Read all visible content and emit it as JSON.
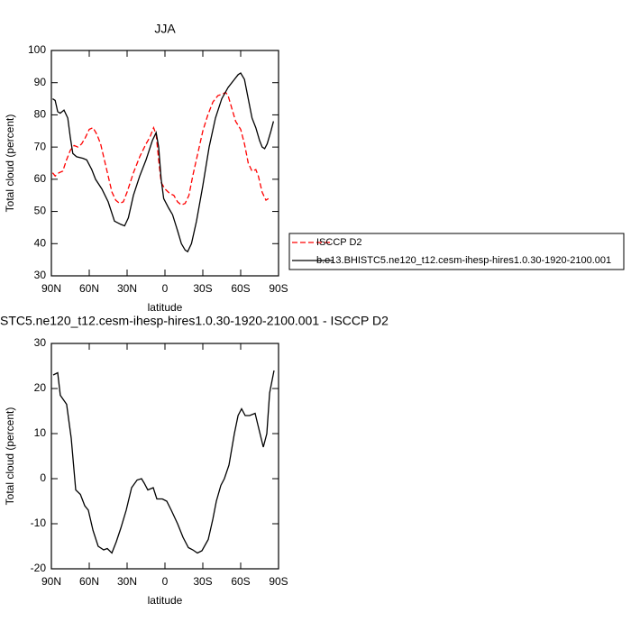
{
  "chart_data": [
    {
      "type": "line",
      "title": "JJA",
      "xlabel": "latitude",
      "ylabel": "Total cloud (percent)",
      "xlim": [
        90,
        -90
      ],
      "ylim": [
        30,
        100
      ],
      "xticks": [
        {
          "value": 90,
          "label": "90N"
        },
        {
          "value": 60,
          "label": "60N"
        },
        {
          "value": 30,
          "label": "30N"
        },
        0,
        {
          "value": -30,
          "label": "30S"
        },
        {
          "value": -60,
          "label": "60S"
        },
        {
          "value": -90,
          "label": "90S"
        }
      ],
      "yticks": [
        30,
        40,
        50,
        60,
        70,
        80,
        90,
        100
      ],
      "legend": "outside-right",
      "series": [
        {
          "name": "ISCCP D2",
          "color": "#ff0000",
          "dash": true,
          "x": [
            89,
            87,
            84,
            81,
            78,
            75,
            72,
            69,
            66,
            63,
            60,
            57,
            54,
            51,
            48,
            45,
            42,
            39,
            36,
            33,
            30,
            25,
            20,
            15,
            12,
            9,
            7,
            5,
            3,
            0,
            -4,
            -7,
            -10,
            -13,
            -16,
            -19,
            -22,
            -26,
            -30,
            -34,
            -38,
            -42,
            -46,
            -48,
            -50,
            -53,
            -56,
            -60,
            -63,
            -66,
            -69,
            -72,
            -74,
            -77,
            -80,
            -82
          ],
          "values": [
            62,
            61,
            62,
            62.5,
            66,
            69,
            70.5,
            70,
            71,
            73,
            75.5,
            76,
            74,
            71,
            66,
            61,
            56,
            53.5,
            52.5,
            53,
            56,
            62,
            67,
            71,
            73,
            76,
            74,
            66,
            59,
            57,
            55.5,
            55,
            53,
            52,
            52.5,
            55,
            61,
            68,
            75,
            80,
            84,
            86,
            86.5,
            87,
            86,
            82,
            78,
            75.5,
            71,
            65,
            62.5,
            63,
            61,
            56,
            53.5,
            54
          ]
        },
        {
          "name": "b.e13.BHISTC5.ne120_t12.cesm-ihesp-hires1.0.30-1920-2100.001",
          "color": "#000000",
          "dash": false,
          "x": [
            89,
            87,
            85,
            83,
            80,
            77,
            75,
            73,
            70,
            65,
            62,
            58,
            55,
            50,
            45,
            40,
            35,
            32,
            29,
            25,
            20,
            15,
            10,
            7,
            5,
            3,
            1,
            -3,
            -6,
            -10,
            -13,
            -16,
            -18,
            -21,
            -25,
            -30,
            -35,
            -40,
            -45,
            -50,
            -55,
            -58,
            -60,
            -63,
            -66,
            -69,
            -72,
            -75,
            -77,
            -79,
            -81,
            -84,
            -86
          ],
          "values": [
            85,
            84.5,
            81,
            80.5,
            81.5,
            79,
            73,
            68,
            67,
            66.5,
            66,
            63,
            60,
            57,
            53,
            47,
            46,
            45.5,
            48,
            55,
            61,
            66,
            72,
            74.5,
            70,
            60,
            54,
            51,
            49,
            44,
            40,
            38,
            37.5,
            40,
            47,
            58,
            70,
            79,
            85,
            88.5,
            91,
            92.5,
            93,
            91,
            85,
            79,
            76,
            72,
            70,
            69.5,
            71,
            75,
            78
          ]
        }
      ]
    },
    {
      "type": "line",
      "title": "STC5.ne120_t12.cesm-ihesp-hires1.0.30-1920-2100.001 - ISCCP D2",
      "xlabel": "latitude",
      "ylabel": "Total cloud (percent)",
      "xlim": [
        90,
        -90
      ],
      "ylim": [
        -20,
        30
      ],
      "xticks": [
        {
          "value": 90,
          "label": "90N"
        },
        {
          "value": 60,
          "label": "60N"
        },
        {
          "value": 30,
          "label": "30N"
        },
        0,
        {
          "value": -30,
          "label": "30S"
        },
        {
          "value": -60,
          "label": "60S"
        },
        {
          "value": -90,
          "label": "90S"
        }
      ],
      "yticks": [
        -20,
        -10,
        0,
        10,
        20,
        30
      ],
      "series": [
        {
          "color": "#000000",
          "dash": false,
          "x": [
            88.6,
            85,
            82.9,
            77.9,
            74.3,
            70.7,
            67,
            63.6,
            60.7,
            57,
            52.9,
            48.6,
            45.7,
            42.1,
            38.6,
            35,
            30.7,
            26.4,
            22.1,
            18.6,
            16.4,
            13.6,
            9.3,
            6.4,
            2.1,
            -1.4,
            -5,
            -10,
            -14.3,
            -18.6,
            -22.1,
            -25.7,
            -29.3,
            -34.3,
            -37.9,
            -40.7,
            -44.3,
            -47.1,
            -50.7,
            -55,
            -57.9,
            -60.7,
            -63.6,
            -67.1,
            -71.4,
            -73.6,
            -77.9,
            -80.7,
            -82.9,
            -86.4
          ],
          "values": [
            23,
            23.5,
            18.5,
            16.5,
            9,
            -2.5,
            -3.5,
            -6,
            -7,
            -11.5,
            -15,
            -15.8,
            -15.5,
            -16.5,
            -14,
            -11,
            -7,
            -2,
            -0.3,
            0,
            -1,
            -2.5,
            -2,
            -4.5,
            -4.5,
            -5,
            -7,
            -10,
            -13,
            -15.3,
            -15.8,
            -16.5,
            -16,
            -13.5,
            -9,
            -5,
            -1.5,
            0,
            3,
            10,
            14,
            15.5,
            14,
            14,
            14.5,
            12,
            7,
            10,
            19,
            24
          ]
        }
      ]
    }
  ]
}
